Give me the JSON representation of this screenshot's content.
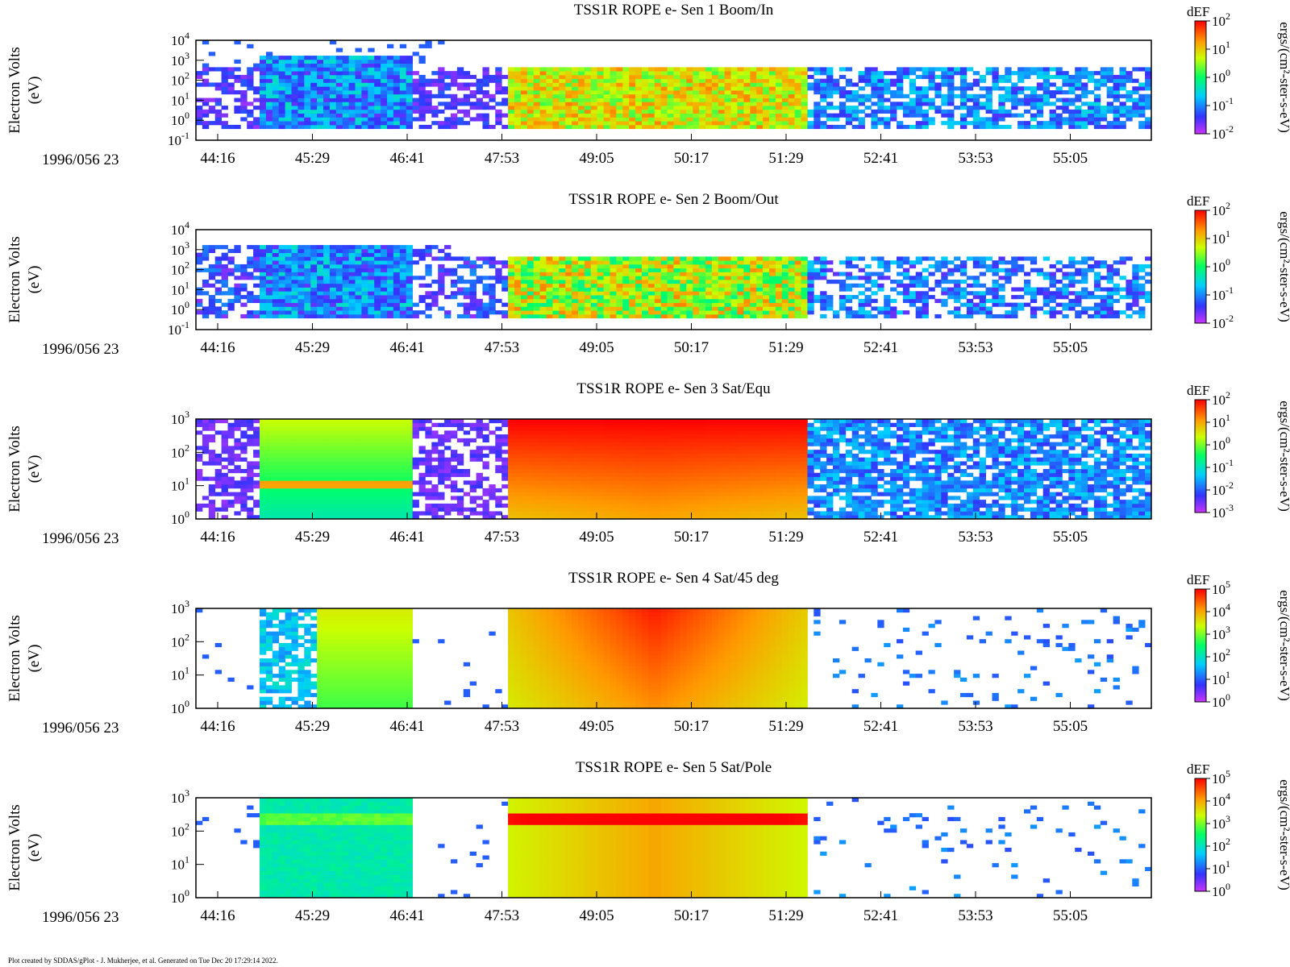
{
  "figure": {
    "footer": "Plot created by SDDAS/gPlot - J. Mukherjee, et al.  Generated on Tue Dec 20 17:29:14 2022.",
    "time_label": "1996/056 23",
    "colorbar_title": "dEF",
    "colorbar_units": "ergs/(cm²-ster-s-eV)",
    "ylabel": "Electron Volts",
    "ylabel_unit": "(eV)",
    "x_tick_labels": [
      "44:16",
      "45:29",
      "46:41",
      "47:53",
      "49:05",
      "50:17",
      "51:29",
      "52:41",
      "53:53",
      "55:05"
    ]
  },
  "chart_data": [
    {
      "type": "heatmap",
      "title": "TSS1R ROPE e- Sen 1 Boom/In",
      "xlabel": "",
      "ylabel": "Electron Volts (eV)",
      "x_range": [
        "23:43:56",
        "23:55:56"
      ],
      "y_scale": "log",
      "y_range": [
        0.1,
        10000
      ],
      "y_tick_exponents": [
        -1,
        0,
        1,
        2,
        3,
        4
      ],
      "colorbar": {
        "label": "dEF",
        "units": "ergs/(cm²-ster-s-eV)",
        "scale": "log",
        "range": [
          0.01,
          100
        ],
        "tick_exponents": [
          -2,
          -1,
          0,
          1,
          2
        ]
      }
    },
    {
      "type": "heatmap",
      "title": "TSS1R ROPE e- Sen 2 Boom/Out",
      "xlabel": "",
      "ylabel": "Electron Volts (eV)",
      "x_range": [
        "23:43:56",
        "23:55:56"
      ],
      "y_scale": "log",
      "y_range": [
        0.1,
        10000
      ],
      "y_tick_exponents": [
        -1,
        0,
        1,
        2,
        3,
        4
      ],
      "colorbar": {
        "label": "dEF",
        "units": "ergs/(cm²-ster-s-eV)",
        "scale": "log",
        "range": [
          0.01,
          100
        ],
        "tick_exponents": [
          -2,
          -1,
          0,
          1,
          2
        ]
      }
    },
    {
      "type": "heatmap",
      "title": "TSS1R ROPE e- Sen 3 Sat/Equ",
      "xlabel": "",
      "ylabel": "Electron Volts (eV)",
      "x_range": [
        "23:43:56",
        "23:55:56"
      ],
      "y_scale": "log",
      "y_range": [
        1,
        1000
      ],
      "y_tick_exponents": [
        0,
        1,
        2,
        3
      ],
      "colorbar": {
        "label": "dEF",
        "units": "ergs/(cm²-ster-s-eV)",
        "scale": "log",
        "range": [
          0.001,
          100
        ],
        "tick_exponents": [
          -3,
          -2,
          -1,
          0,
          1,
          2
        ]
      }
    },
    {
      "type": "heatmap",
      "title": "TSS1R ROPE e- Sen 4 Sat/45 deg",
      "xlabel": "",
      "ylabel": "Electron Volts (eV)",
      "x_range": [
        "23:43:56",
        "23:55:56"
      ],
      "y_scale": "log",
      "y_range": [
        1,
        1000
      ],
      "y_tick_exponents": [
        0,
        1,
        2,
        3
      ],
      "colorbar": {
        "label": "dEF",
        "units": "ergs/(cm²-ster-s-eV)",
        "scale": "log",
        "range": [
          1,
          100000
        ],
        "tick_exponents": [
          0,
          1,
          2,
          3,
          4,
          5
        ]
      }
    },
    {
      "type": "heatmap",
      "title": "TSS1R ROPE e- Sen 5 Sat/Pole",
      "xlabel": "",
      "ylabel": "Electron Volts (eV)",
      "x_range": [
        "23:43:56",
        "23:55:56"
      ],
      "y_scale": "log",
      "y_range": [
        1,
        1000
      ],
      "y_tick_exponents": [
        0,
        1,
        2,
        3
      ],
      "colorbar": {
        "label": "dEF",
        "units": "ergs/(cm²-ster-s-eV)",
        "scale": "log",
        "range": [
          1,
          100000
        ],
        "tick_exponents": [
          0,
          1,
          2,
          3,
          4,
          5
        ]
      }
    }
  ]
}
